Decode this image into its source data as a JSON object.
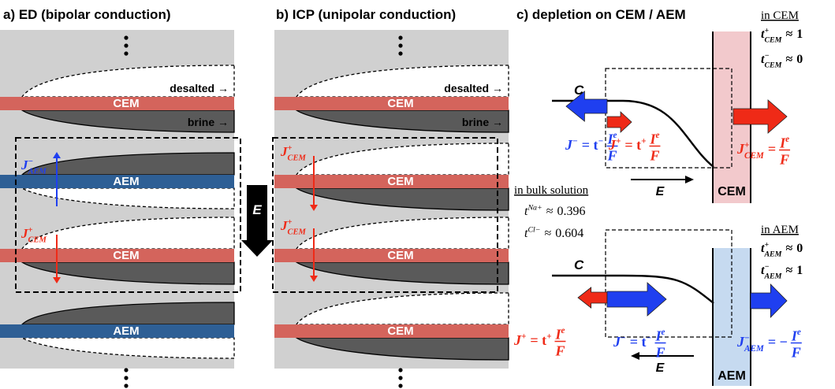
{
  "panel_a": {
    "title": "a) ED (bipolar conduction)",
    "desalted": "desalted →",
    "brine": "brine →",
    "membranes": [
      "CEM",
      "AEM",
      "CEM",
      "AEM"
    ],
    "fluxes": [
      {
        "left": "J",
        "left_sup": "−",
        "left_sub": "AEM"
      },
      {
        "left": "J",
        "left_sup": "+",
        "left_sub": "CEM"
      }
    ]
  },
  "panel_b": {
    "title": "b) ICP (unipolar conduction)",
    "desalted": "desalted →",
    "brine": "brine →",
    "membranes": [
      "CEM",
      "CEM",
      "CEM",
      "CEM"
    ],
    "fluxes": [
      {
        "left": "J",
        "left_sup": "+",
        "left_sub": "CEM"
      },
      {
        "left": "J",
        "left_sup": "+",
        "left_sub": "CEM"
      }
    ]
  },
  "field": "E",
  "panel_c": {
    "title": "c) depletion on CEM / AEM",
    "bulk": {
      "heading": "in bulk solution",
      "t_na": {
        "left": "t",
        "left_sup": "Na+",
        "eq": "≈",
        "value": 0.396
      },
      "t_cl": {
        "left": "t",
        "left_sup": "Cl−",
        "eq": "≈",
        "value": 0.604
      }
    },
    "top": {
      "concentration": "C",
      "field": "E",
      "membrane": "CEM",
      "heading": "in CEM",
      "t_plus": {
        "left": "t",
        "left_sup": "+",
        "left_sub": "CEM",
        "eq": "≈",
        "value": 1
      },
      "t_minus": {
        "left": "t",
        "left_sup": "−",
        "left_sub": "CEM",
        "eq": "≈",
        "value": 0
      },
      "flux_minus": {
        "left": "J",
        "left_sup": "−",
        "eq": "= t",
        "eq_sup": "−",
        "num": "I",
        "num_sup": "e",
        "den": "F"
      },
      "flux_plus": {
        "left": "J",
        "left_sup": "+",
        "eq": "= t",
        "eq_sup": "+",
        "num": "I",
        "num_sup": "e",
        "den": "F"
      },
      "flux_membrane": {
        "left": "J",
        "left_sup": "+",
        "left_sub": "CEM",
        "eq": "=",
        "num": "I",
        "num_sup": "e",
        "den": "F"
      }
    },
    "bottom": {
      "concentration": "C",
      "field": "E",
      "membrane": "AEM",
      "heading": "in AEM",
      "t_plus": {
        "left": "t",
        "left_sup": "+",
        "left_sub": "AEM",
        "eq": "≈",
        "value": 0
      },
      "t_minus": {
        "left": "t",
        "left_sup": "−",
        "left_sub": "AEM",
        "eq": "≈",
        "value": 1
      },
      "flux_plus": {
        "left": "J",
        "left_sup": "+",
        "eq": "= t",
        "eq_sup": "+",
        "num": "I",
        "num_sup": "e",
        "den": "F"
      },
      "flux_minus": {
        "left": "J",
        "left_sup": "−",
        "eq": "= t",
        "eq_sup": "−",
        "num": "I",
        "num_sup": "e",
        "den": "F"
      },
      "flux_membrane": {
        "left": "J",
        "left_sup": "−",
        "left_sub": "AEM",
        "eq": "= −",
        "num": "I",
        "num_sup": "e",
        "den": "F"
      }
    }
  }
}
